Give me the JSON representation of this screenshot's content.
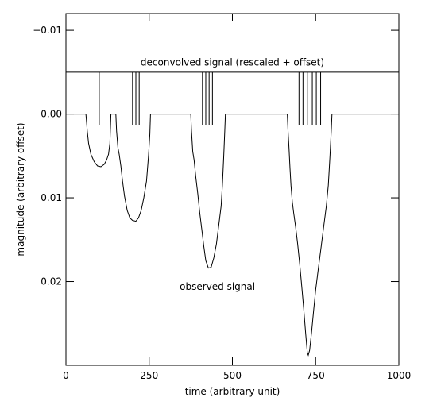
{
  "chart_data": {
    "type": "line",
    "xlabel": "time (arbitrary unit)",
    "ylabel": "magnitude (arbitrary offset)",
    "xlim": [
      0,
      1000
    ],
    "ylim": [
      -0.012,
      0.03
    ],
    "y_inverted": true,
    "x_ticks": [
      0,
      250,
      500,
      750,
      1000
    ],
    "x_tick_labels": [
      "0",
      "250",
      "500",
      "750",
      "1000"
    ],
    "y_ticks": [
      -0.01,
      0.0,
      0.01,
      0.02
    ],
    "y_tick_labels": [
      "−0.01",
      "0.00",
      "0.01",
      "0.02"
    ],
    "grid": false,
    "annotations": [
      {
        "name": "deconvolved-label",
        "text": "deconvolved signal (rescaled + offset)",
        "x": 500,
        "y": -0.0058
      },
      {
        "name": "observed-label",
        "text": "observed signal",
        "x": 455,
        "y": 0.021
      }
    ],
    "series": [
      {
        "key": "observed",
        "color": "#000000",
        "points": [
          [
            0,
            0.0
          ],
          [
            60,
            0.0
          ],
          [
            62,
            0.001
          ],
          [
            64,
            0.002
          ],
          [
            68,
            0.0035
          ],
          [
            75,
            0.0048
          ],
          [
            85,
            0.0057
          ],
          [
            95,
            0.0062
          ],
          [
            105,
            0.0063
          ],
          [
            115,
            0.006
          ],
          [
            122,
            0.0055
          ],
          [
            128,
            0.0048
          ],
          [
            132,
            0.0035
          ],
          [
            135,
            0.0
          ],
          [
            150,
            0.0
          ],
          [
            152,
            0.002
          ],
          [
            156,
            0.004
          ],
          [
            160,
            0.0048
          ],
          [
            165,
            0.0062
          ],
          [
            170,
            0.008
          ],
          [
            176,
            0.0098
          ],
          [
            184,
            0.0115
          ],
          [
            192,
            0.0124
          ],
          [
            200,
            0.0127
          ],
          [
            210,
            0.0128
          ],
          [
            218,
            0.0124
          ],
          [
            226,
            0.0115
          ],
          [
            234,
            0.01
          ],
          [
            242,
            0.008
          ],
          [
            248,
            0.005
          ],
          [
            252,
            0.0024
          ],
          [
            254,
            0.0
          ],
          [
            375,
            0.0
          ],
          [
            377,
            0.002
          ],
          [
            381,
            0.0045
          ],
          [
            385,
            0.0055
          ],
          [
            390,
            0.0075
          ],
          [
            396,
            0.0095
          ],
          [
            402,
            0.0118
          ],
          [
            408,
            0.0138
          ],
          [
            414,
            0.0158
          ],
          [
            420,
            0.0175
          ],
          [
            428,
            0.0184
          ],
          [
            436,
            0.0183
          ],
          [
            444,
            0.0172
          ],
          [
            452,
            0.0155
          ],
          [
            460,
            0.013
          ],
          [
            466,
            0.011
          ],
          [
            470,
            0.0085
          ],
          [
            474,
            0.005
          ],
          [
            477,
            0.002
          ],
          [
            479,
            0.0
          ],
          [
            665,
            0.0
          ],
          [
            667,
            0.002
          ],
          [
            670,
            0.004
          ],
          [
            673,
            0.0065
          ],
          [
            676,
            0.0085
          ],
          [
            680,
            0.0105
          ],
          [
            684,
            0.0118
          ],
          [
            690,
            0.0135
          ],
          [
            696,
            0.0155
          ],
          [
            702,
            0.0178
          ],
          [
            708,
            0.0205
          ],
          [
            714,
            0.0232
          ],
          [
            720,
            0.0262
          ],
          [
            725,
            0.0285
          ],
          [
            728,
            0.0288
          ],
          [
            732,
            0.0282
          ],
          [
            738,
            0.026
          ],
          [
            744,
            0.0235
          ],
          [
            750,
            0.021
          ],
          [
            758,
            0.0185
          ],
          [
            766,
            0.016
          ],
          [
            774,
            0.0135
          ],
          [
            782,
            0.011
          ],
          [
            788,
            0.0085
          ],
          [
            793,
            0.005
          ],
          [
            797,
            0.002
          ],
          [
            799,
            0.0
          ],
          [
            1000,
            0.0
          ]
        ]
      },
      {
        "key": "deconvolved",
        "color": "#000000",
        "baseline": -0.005,
        "spikes": [
          [
            100,
            0.0013
          ],
          [
            200,
            0.0013
          ],
          [
            210,
            0.0013
          ],
          [
            220,
            0.0013
          ],
          [
            410,
            0.0013
          ],
          [
            420,
            0.0013
          ],
          [
            430,
            0.0013
          ],
          [
            440,
            0.0013
          ],
          [
            700,
            0.0013
          ],
          [
            712,
            0.0013
          ],
          [
            725,
            0.0013
          ],
          [
            740,
            0.0013
          ],
          [
            752,
            0.0013
          ],
          [
            765,
            0.0013
          ]
        ]
      }
    ]
  }
}
